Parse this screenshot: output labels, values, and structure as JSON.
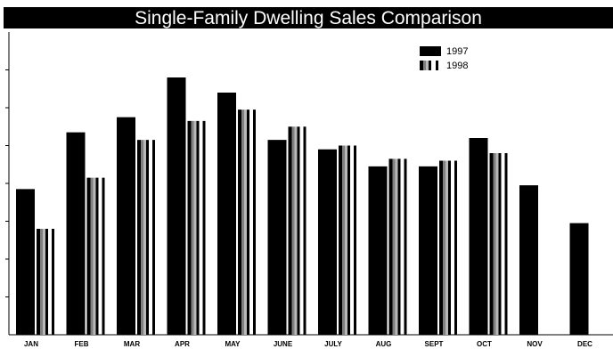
{
  "chart_data": {
    "type": "bar",
    "title": "Single-Family Dwelling Sales Comparison",
    "categories": [
      "JAN",
      "FEB",
      "MAR",
      "APR",
      "MAY",
      "JUNE",
      "JULY",
      "AUG",
      "SEPT",
      "OCT",
      "NOV",
      "DEC"
    ],
    "series": [
      {
        "name": "1997",
        "values": [
          385,
          535,
          575,
          680,
          640,
          515,
          490,
          445,
          445,
          520,
          395,
          295
        ]
      },
      {
        "name": "1998",
        "values": [
          280,
          415,
          515,
          565,
          595,
          550,
          500,
          465,
          460,
          480,
          null,
          null
        ]
      }
    ],
    "ytick_labels": [
      "",
      "",
      "",
      "",
      "",
      "",
      ""
    ],
    "ytick_values": [
      100,
      200,
      300,
      400,
      500,
      600,
      700
    ],
    "ylim": [
      0,
      800
    ],
    "xlabel": "",
    "ylabel": "",
    "legend_position": "top-right",
    "grid": false,
    "colors": {
      "title_bar": "#000000",
      "title_text": "#ffffff",
      "series_1997": "#000000",
      "series_1998_dark": "#000000",
      "series_1998_mid": "#808080",
      "series_1998_light": "#b8b8b8",
      "axis": "#000000"
    }
  }
}
